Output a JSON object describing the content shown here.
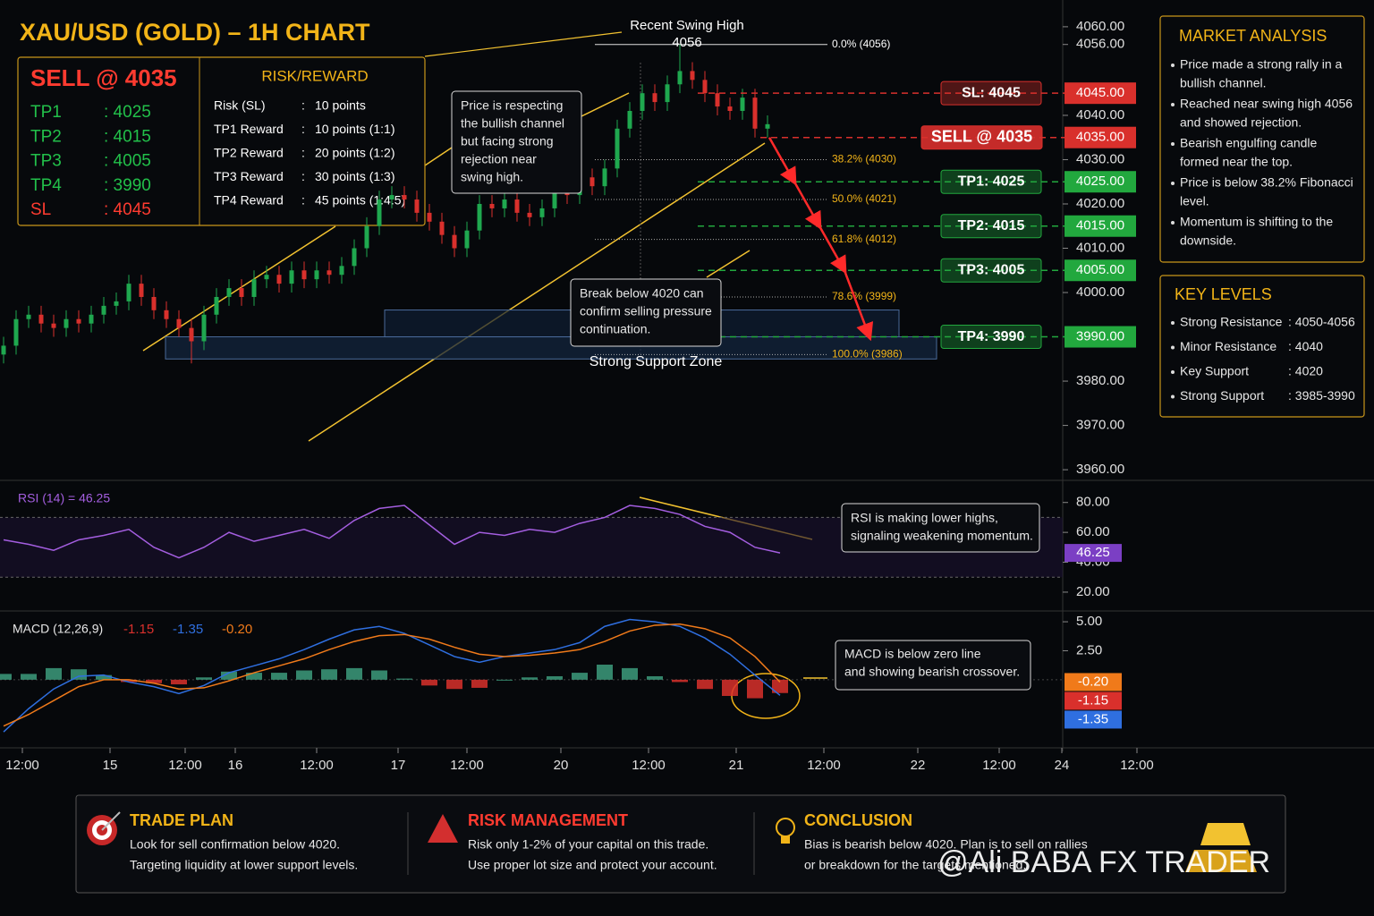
{
  "header": {
    "title": "XAU/USD (GOLD) – 1H CHART"
  },
  "trade_setup": {
    "entry": "SELL @ 4035",
    "targets": [
      {
        "name": "TP1",
        "value": ": 4025"
      },
      {
        "name": "TP2",
        "value": ": 4015"
      },
      {
        "name": "TP3",
        "value": ": 4005"
      },
      {
        "name": "TP4",
        "value": ": 3990"
      },
      {
        "name": "SL",
        "value": ": 4045"
      }
    ]
  },
  "risk_reward": {
    "title": "RISK/REWARD",
    "rows": [
      [
        "Risk (SL)",
        ":",
        "10 points"
      ],
      [
        "TP1 Reward",
        ":",
        "10 points (1:1)"
      ],
      [
        "TP2 Reward",
        ":",
        "20 points (1:2)"
      ],
      [
        "TP3 Reward",
        ":",
        "30 points (1:3)"
      ],
      [
        "TP4 Reward",
        ":",
        "45 points (1:4.5)"
      ]
    ]
  },
  "market_analysis": {
    "title": "MARKET ANALYSIS",
    "points": [
      [
        "Price made a strong rally in a",
        "bullish channel."
      ],
      [
        "Reached near swing high 4056",
        "and showed rejection."
      ],
      [
        "Bearish engulfing candle",
        "formed near the top."
      ],
      [
        "Price is below 38.2% Fibonacci",
        "level."
      ],
      [
        "Momentum is shifting to the",
        "downside."
      ]
    ]
  },
  "key_levels": {
    "title": "KEY LEVELS",
    "rows": [
      [
        "Strong Resistance",
        ": 4050-4056"
      ],
      [
        "Minor Resistance",
        ": 4040"
      ],
      [
        "Key Support",
        ": 4020"
      ],
      [
        "Strong Support",
        ": 3985-3990"
      ]
    ]
  },
  "footer": {
    "sections": [
      {
        "title": "TRADE PLAN",
        "lines": [
          "Look for sell confirmation below 4020.",
          "Targeting liquidity at lower support levels."
        ]
      },
      {
        "title": "RISK MANAGEMENT",
        "lines": [
          "Risk only 1-2% of your capital on this trade.",
          "Use proper lot size and protect your account."
        ]
      },
      {
        "title": "CONCLUSION",
        "lines": [
          "Bias is bearish below 4020. Plan is to sell on rallies",
          "or breakdown for the targets mentioned."
        ]
      }
    ]
  },
  "watermark": "@Ali BABA FX TRADER",
  "chart_data": [
    {
      "type": "candlestick",
      "up_color": "#1fa84f",
      "down_color": "#d9302c",
      "grid": false,
      "xlim": [
        0,
        182
      ],
      "xticks": [
        {
          "value": 3,
          "label": "12:00"
        },
        {
          "value": 17,
          "label": "15"
        },
        {
          "value": 29,
          "label": "12:00"
        },
        {
          "value": 37,
          "label": "16"
        },
        {
          "value": 50,
          "label": "12:00"
        },
        {
          "value": 63,
          "label": "17"
        },
        {
          "value": 74,
          "label": "12:00"
        },
        {
          "value": 89,
          "label": "20"
        },
        {
          "value": 103,
          "label": "12:00"
        },
        {
          "value": 117,
          "label": "21"
        },
        {
          "value": 131,
          "label": "12:00"
        },
        {
          "value": 146,
          "label": "22"
        },
        {
          "value": 159,
          "label": "12:00"
        },
        {
          "value": 169,
          "label": "24"
        },
        {
          "value": 181,
          "label": "12:00"
        }
      ],
      "ylim": [
        3958,
        4062
      ],
      "yticks": [
        {
          "value": 4060,
          "label": "4060.00"
        },
        {
          "value": 4056,
          "label": "4056.00"
        },
        {
          "value": 4040,
          "label": "4040.00"
        },
        {
          "value": 4030,
          "label": "4030.00"
        },
        {
          "value": 4020,
          "label": "4020.00"
        },
        {
          "value": 4010,
          "label": "4010.00"
        },
        {
          "value": 4000,
          "label": "4000.00"
        },
        {
          "value": 3980,
          "label": "3980.00"
        },
        {
          "value": 3970,
          "label": "3970.00"
        },
        {
          "value": 3960,
          "label": "3960.00"
        }
      ],
      "x": [
        0,
        2,
        4,
        6,
        8,
        10,
        12,
        14,
        16,
        18,
        20,
        22,
        24,
        26,
        28,
        30,
        32,
        34,
        36,
        38,
        40,
        42,
        44,
        46,
        48,
        50,
        52,
        54,
        56,
        58,
        60,
        62,
        64,
        66,
        68,
        70,
        72,
        74,
        76,
        78,
        80,
        82,
        84,
        86,
        88,
        90,
        92,
        94,
        96,
        98,
        100,
        102,
        104,
        106,
        108,
        110,
        112,
        114,
        116,
        118,
        120,
        122
      ],
      "open": [
        3986,
        3988,
        3994,
        3995,
        3993,
        3992,
        3994,
        3993,
        3995,
        3997,
        3998,
        4002,
        3999,
        3996,
        3994,
        3992,
        3989,
        3995,
        3999,
        4001,
        3999,
        4003,
        4004,
        4002,
        4005,
        4003,
        4005,
        4004,
        4006,
        4010,
        4015,
        4021,
        4022,
        4021,
        4018,
        4016,
        4013,
        4010,
        4014,
        4020,
        4019,
        4021,
        4018,
        4017,
        4019,
        4023,
        4022,
        4026,
        4024,
        4028,
        4037,
        4041,
        4045,
        4043,
        4047,
        4050,
        4048,
        4045,
        4042,
        4041,
        4044,
        4037
      ],
      "high": [
        3990,
        3996,
        3997,
        3997,
        3995,
        3996,
        3996,
        3997,
        3999,
        4000,
        4004,
        4004,
        4001,
        3998,
        3996,
        3994,
        3997,
        4001,
        4003,
        4003,
        4005,
        4006,
        4006,
        4007,
        4007,
        4007,
        4007,
        4008,
        4012,
        4017,
        4023,
        4024,
        4024,
        4023,
        4020,
        4018,
        4015,
        4016,
        4022,
        4022,
        4023,
        4023,
        4020,
        4021,
        4025,
        4025,
        4028,
        4028,
        4030,
        4039,
        4043,
        4047,
        4047,
        4049,
        4056,
        4052,
        4050,
        4047,
        4044,
        4046,
        4046,
        4040
      ],
      "low": [
        3984,
        3986,
        3992,
        3991,
        3990,
        3990,
        3991,
        3991,
        3993,
        3995,
        3996,
        3997,
        3994,
        3992,
        3990,
        3984,
        3987,
        3993,
        3997,
        3997,
        3997,
        4001,
        4000,
        4000,
        4001,
        4001,
        4002,
        4002,
        4004,
        4008,
        4013,
        4019,
        4019,
        4016,
        4014,
        4011,
        4008,
        4008,
        4012,
        4017,
        4017,
        4016,
        4015,
        4015,
        4017,
        4020,
        4020,
        4022,
        4022,
        4026,
        4035,
        4039,
        4041,
        4041,
        4045,
        4046,
        4043,
        4040,
        4039,
        4039,
        4035,
        4035
      ],
      "close": [
        3988,
        3994,
        3995,
        3993,
        3992,
        3994,
        3993,
        3995,
        3997,
        3998,
        4002,
        3999,
        3996,
        3994,
        3992,
        3989,
        3995,
        3999,
        4001,
        3999,
        4003,
        4004,
        4002,
        4005,
        4003,
        4005,
        4004,
        4006,
        4010,
        4015,
        4021,
        4022,
        4021,
        4018,
        4016,
        4013,
        4010,
        4014,
        4020,
        4019,
        4021,
        4018,
        4017,
        4019,
        4023,
        4022,
        4026,
        4024,
        4028,
        4037,
        4041,
        4045,
        4043,
        4047,
        4050,
        4048,
        4045,
        4042,
        4041,
        4044,
        4037,
        4038
      ],
      "levels": [
        {
          "label": "SL: 4045",
          "value": 4045,
          "tag": "4045.00",
          "color": "#d9302c"
        },
        {
          "label": "SELL @ 4035",
          "value": 4035,
          "tag": "4035.00",
          "color": "#d9302c"
        },
        {
          "label": "TP1: 4025",
          "value": 4025,
          "tag": "4025.00",
          "color": "#22a83e"
        },
        {
          "label": "TP2: 4015",
          "value": 4015,
          "tag": "4015.00",
          "color": "#22a83e"
        },
        {
          "label": "TP3: 4005",
          "value": 4005,
          "tag": "4005.00",
          "color": "#22a83e"
        },
        {
          "label": "TP4: 3990",
          "value": 3990,
          "tag": "3990.00",
          "color": "#22a83e"
        }
      ],
      "fibonacci": [
        {
          "label": "0.0% (4056)",
          "value": 4056
        },
        {
          "label": "38.2% (4030)",
          "value": 4030
        },
        {
          "label": "50.0% (4021)",
          "value": 4021
        },
        {
          "label": "61.8% (4012)",
          "value": 4012
        },
        {
          "label": "78.6% (3999)",
          "value": 3999
        },
        {
          "label": "100.0% (3986)",
          "value": 3986
        }
      ],
      "support_zone": {
        "label": "Strong Support Zone",
        "range": [
          3985,
          3990
        ]
      },
      "annotations": [
        {
          "lines": [
            "Recent Swing High",
            "4056"
          ]
        },
        {
          "lines": [
            "Price is respecting",
            "the bullish channel",
            "but facing strong",
            "rejection near",
            "swing high."
          ]
        },
        {
          "lines": [
            "Break below 4020 can",
            "confirm selling pressure",
            "continuation."
          ]
        }
      ]
    },
    {
      "type": "line",
      "title": "RSI (14)  = 46.25",
      "color": "#a45ee0",
      "ylim": [
        8,
        93
      ],
      "yticks": [
        {
          "value": 80,
          "label": "80.00"
        },
        {
          "value": 60,
          "label": "60.00"
        },
        {
          "value": 40,
          "label": "40.00"
        },
        {
          "value": 20,
          "label": "20.00"
        }
      ],
      "bands": [
        30,
        70
      ],
      "x": [
        0,
        4,
        8,
        12,
        16,
        20,
        24,
        28,
        32,
        36,
        40,
        44,
        48,
        52,
        56,
        60,
        64,
        68,
        72,
        76,
        80,
        84,
        88,
        92,
        96,
        100,
        104,
        108,
        112,
        116,
        120,
        124
      ],
      "values": [
        55,
        52,
        48,
        55,
        58,
        62,
        50,
        43,
        50,
        60,
        54,
        58,
        62,
        56,
        68,
        76,
        78,
        65,
        52,
        60,
        58,
        62,
        60,
        66,
        70,
        78,
        76,
        72,
        64,
        60,
        50,
        46.25
      ],
      "annotation": {
        "lines": [
          "RSI is making lower highs,",
          "signaling weakening momentum."
        ]
      }
    },
    {
      "type": "macd",
      "title": "MACD (12,26,9)",
      "ylim": [
        -5.8,
        5.7
      ],
      "yticks": [
        {
          "value": 5,
          "label": "5.00"
        },
        {
          "value": 2.5,
          "label": "2.50"
        }
      ],
      "x": [
        0,
        4,
        8,
        12,
        16,
        20,
        24,
        28,
        32,
        36,
        40,
        44,
        48,
        52,
        56,
        60,
        64,
        68,
        72,
        76,
        80,
        84,
        88,
        92,
        96,
        100,
        104,
        108,
        112,
        116,
        120,
        124
      ],
      "series": [
        {
          "type": "bar",
          "color": "#d9302c",
          "up_color": "#3d9b7c",
          "value_label": "-1.15",
          "values": [
            0.5,
            0.5,
            1.0,
            0.9,
            0.4,
            -0.2,
            -0.3,
            -0.4,
            0.2,
            0.7,
            0.6,
            0.6,
            0.8,
            0.9,
            1.0,
            0.8,
            0.1,
            -0.5,
            -0.8,
            -0.7,
            0.0,
            0.2,
            0.3,
            0.6,
            1.3,
            1.0,
            0.3,
            -0.2,
            -0.8,
            -1.4,
            -1.6,
            -1.15
          ]
        },
        {
          "type": "line",
          "color": "#2f6fe0",
          "value_label": "-1.35",
          "values": [
            -4.5,
            -2.5,
            -0.8,
            0.3,
            0.4,
            -0.2,
            -0.6,
            -1.2,
            -0.5,
            0.6,
            1.2,
            1.8,
            2.6,
            3.5,
            4.3,
            4.6,
            4.0,
            3.0,
            2.0,
            1.5,
            2.0,
            2.3,
            2.6,
            3.2,
            4.6,
            5.2,
            5.0,
            4.6,
            3.6,
            2.2,
            0.4,
            -1.35
          ]
        },
        {
          "type": "line",
          "color": "#f07a1a",
          "value_label": "-0.20",
          "values": [
            -4.0,
            -3.0,
            -1.8,
            -0.6,
            0.0,
            0.0,
            -0.3,
            -0.8,
            -0.7,
            -0.1,
            0.6,
            1.2,
            1.8,
            2.6,
            3.3,
            3.8,
            3.9,
            3.5,
            2.8,
            2.2,
            2.0,
            2.1,
            2.3,
            2.6,
            3.3,
            4.2,
            4.7,
            4.8,
            4.4,
            3.6,
            2.0,
            -0.2
          ]
        }
      ],
      "annotation": {
        "lines": [
          "MACD is below zero line",
          "and showing bearish crossover."
        ]
      }
    }
  ]
}
